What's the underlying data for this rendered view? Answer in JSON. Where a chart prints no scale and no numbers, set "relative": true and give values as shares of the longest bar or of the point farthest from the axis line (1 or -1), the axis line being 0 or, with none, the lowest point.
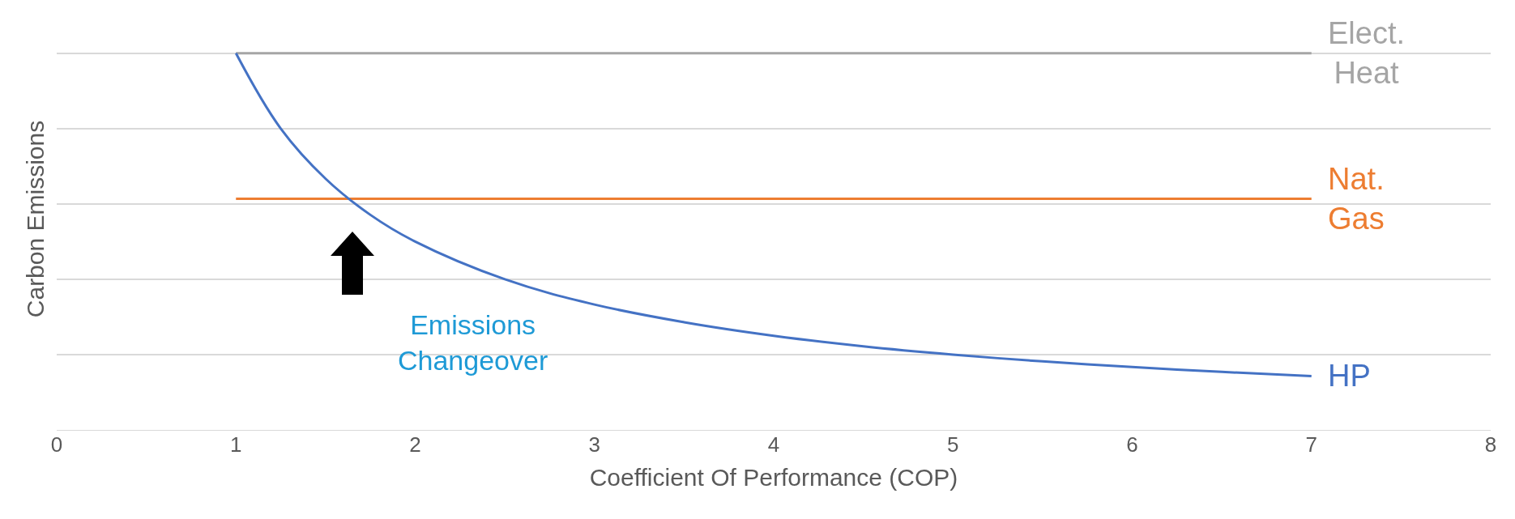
{
  "chart_data": {
    "type": "line",
    "relative": true,
    "xlabel": "Coefficient Of Performance (COP)",
    "ylabel": "Carbon Emissions",
    "xlim": [
      0,
      8
    ],
    "xticks": [
      0,
      1,
      2,
      3,
      4,
      5,
      6,
      7,
      8
    ],
    "grid": "y",
    "legend": false,
    "marker": "none",
    "line_style": "solid",
    "series": [
      {
        "name": "Elect. Heat",
        "color": "#a5a5a5",
        "x": [
          1,
          7
        ],
        "values": [
          1,
          1
        ]
      },
      {
        "name": "Nat. Gas",
        "color": "#ed7d31",
        "x": [
          1,
          7
        ],
        "values": [
          0.614,
          0.614
        ]
      },
      {
        "name": "HP",
        "color": "#4472c4",
        "x": [
          1,
          1.25,
          1.5,
          1.75,
          2,
          2.5,
          3,
          3.5,
          4,
          4.5,
          5,
          5.5,
          6,
          6.5,
          7
        ],
        "values": [
          1,
          0.8,
          0.667,
          0.571,
          0.5,
          0.4,
          0.333,
          0.286,
          0.25,
          0.222,
          0.2,
          0.182,
          0.167,
          0.154,
          0.143
        ]
      }
    ],
    "annotations": [
      "Emissions Changeover"
    ]
  }
}
